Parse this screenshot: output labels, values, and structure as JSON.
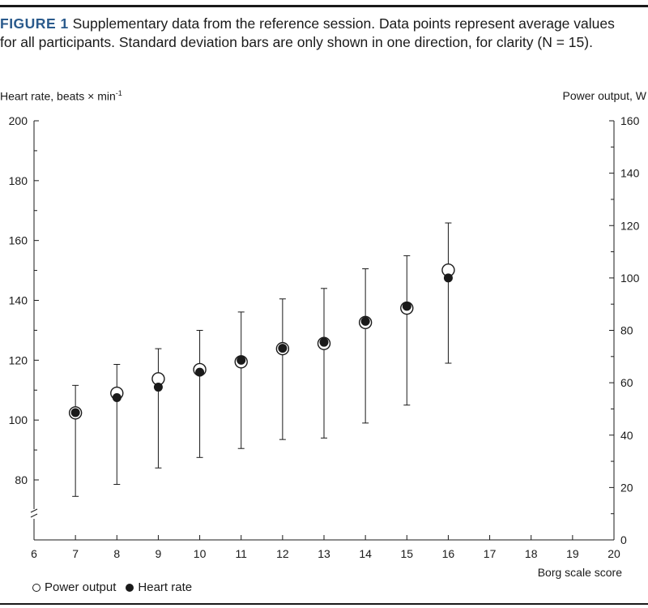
{
  "caption": {
    "label": "FIGURE 1",
    "text": "Supplementary data from the reference session. Data points represent average values for all participants. Standard deviation bars are only shown in one direction, for clarity (N = 15)."
  },
  "chart_data": {
    "type": "scatter",
    "xlabel": "Borg scale score",
    "ylabel_left": "Heart rate, beats × min",
    "ylabel_left_sup": "-1",
    "ylabel_right": "Power output, W",
    "x_ticks": [
      6,
      7,
      8,
      9,
      10,
      11,
      12,
      13,
      14,
      15,
      16,
      17,
      18,
      19,
      20
    ],
    "xlim": [
      6,
      20
    ],
    "y_left_ticks": [
      80,
      100,
      120,
      140,
      160,
      180,
      200
    ],
    "y_left_range": [
      66,
      200
    ],
    "y_left_axis_break": true,
    "y_right_ticks": [
      0,
      20,
      40,
      60,
      80,
      100,
      120,
      140,
      160
    ],
    "y_right_range": [
      0,
      160
    ],
    "grid": false,
    "legend_position": "bottom-left",
    "series": [
      {
        "name": "Power output",
        "marker": "open-circle",
        "axis": "right",
        "x": [
          7,
          8,
          9,
          10,
          11,
          12,
          13,
          14,
          15,
          16
        ],
        "y": [
          48.5,
          56,
          61.5,
          65,
          68,
          73,
          75,
          83,
          88.5,
          103
        ],
        "sd_top": [
          59,
          67,
          73,
          80,
          87,
          92,
          96,
          103.5,
          108.5,
          121
        ]
      },
      {
        "name": "Heart rate",
        "marker": "filled-circle",
        "axis": "left",
        "x": [
          7,
          8,
          9,
          10,
          11,
          12,
          13,
          14,
          15,
          16
        ],
        "y": [
          102.5,
          107.5,
          111,
          116,
          120,
          124,
          126,
          133,
          138,
          147.5
        ],
        "sd_bottom": [
          74.5,
          78.5,
          84,
          87.5,
          90.5,
          93.5,
          94,
          99,
          105,
          119
        ]
      }
    ]
  }
}
